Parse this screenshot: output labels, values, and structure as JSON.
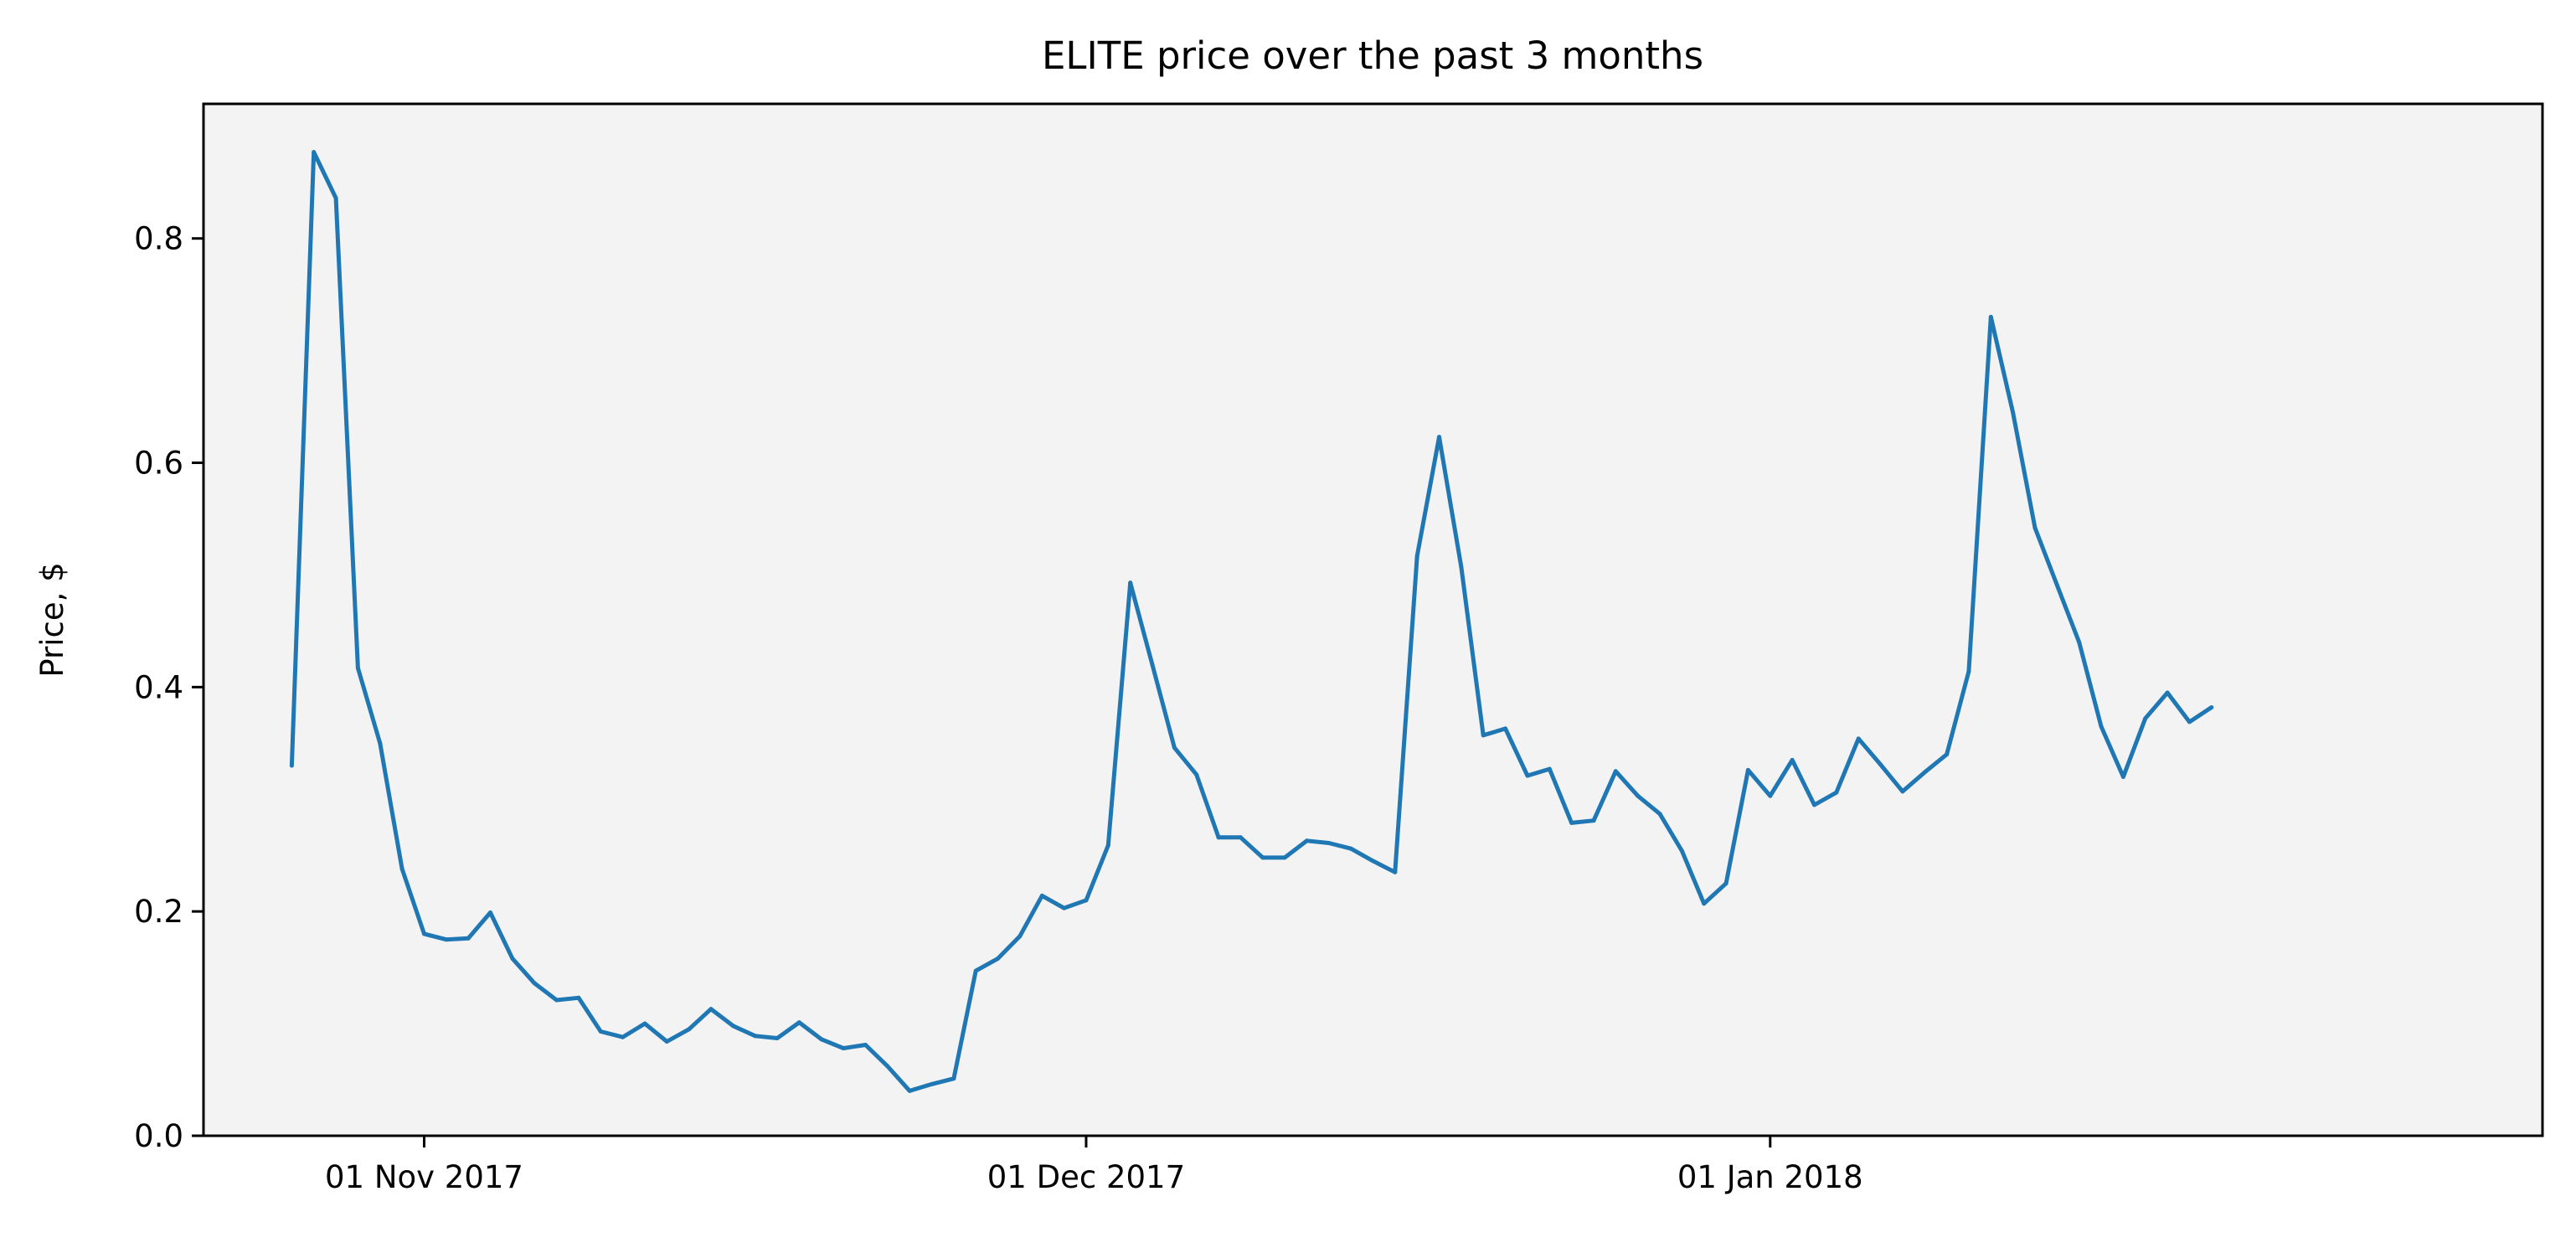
{
  "chart_data": {
    "type": "line",
    "title": "ELITE price over the past 3 months",
    "xlabel": "",
    "ylabel": "Price, $",
    "ylim": [
      0,
      0.92
    ],
    "xlim": [
      "2017-10-22",
      "2018-02-05"
    ],
    "grid": false,
    "plot_background": "#f3f3f3",
    "line_color": "#1f77b4",
    "x_ticks": [
      {
        "date": "2017-11-01",
        "label": "01 Nov 2017"
      },
      {
        "date": "2017-12-01",
        "label": "01 Dec 2017"
      },
      {
        "date": "2018-01-01",
        "label": "01 Jan 2018"
      }
    ],
    "y_ticks": [
      {
        "value": 0.0,
        "label": "0.0"
      },
      {
        "value": 0.2,
        "label": "0.2"
      },
      {
        "value": 0.4,
        "label": "0.4"
      },
      {
        "value": 0.6,
        "label": "0.6"
      },
      {
        "value": 0.8,
        "label": "0.8"
      }
    ],
    "series": [
      {
        "points": [
          [
            "2017-10-26",
            0.33
          ],
          [
            "2017-10-27",
            0.877
          ],
          [
            "2017-10-28",
            0.836
          ],
          [
            "2017-10-29",
            0.417
          ],
          [
            "2017-10-30",
            0.35
          ],
          [
            "2017-10-31",
            0.238
          ],
          [
            "2017-11-01",
            0.18
          ],
          [
            "2017-11-02",
            0.175
          ],
          [
            "2017-11-03",
            0.176
          ],
          [
            "2017-11-04",
            0.199
          ],
          [
            "2017-11-05",
            0.158
          ],
          [
            "2017-11-06",
            0.136
          ],
          [
            "2017-11-07",
            0.121
          ],
          [
            "2017-11-08",
            0.123
          ],
          [
            "2017-11-09",
            0.093
          ],
          [
            "2017-11-10",
            0.088
          ],
          [
            "2017-11-11",
            0.1
          ],
          [
            "2017-11-12",
            0.084
          ],
          [
            "2017-11-13",
            0.095
          ],
          [
            "2017-11-14",
            0.113
          ],
          [
            "2017-11-15",
            0.098
          ],
          [
            "2017-11-16",
            0.089
          ],
          [
            "2017-11-17",
            0.087
          ],
          [
            "2017-11-18",
            0.101
          ],
          [
            "2017-11-19",
            0.086
          ],
          [
            "2017-11-20",
            0.078
          ],
          [
            "2017-11-21",
            0.081
          ],
          [
            "2017-11-22",
            0.062
          ],
          [
            "2017-11-23",
            0.04
          ],
          [
            "2017-11-24",
            0.046
          ],
          [
            "2017-11-25",
            0.051
          ],
          [
            "2017-11-26",
            0.147
          ],
          [
            "2017-11-27",
            0.158
          ],
          [
            "2017-11-28",
            0.178
          ],
          [
            "2017-11-29",
            0.214
          ],
          [
            "2017-11-30",
            0.203
          ],
          [
            "2017-12-01",
            0.21
          ],
          [
            "2017-12-02",
            0.259
          ],
          [
            "2017-12-03",
            0.493
          ],
          [
            "2017-12-04",
            0.42
          ],
          [
            "2017-12-05",
            0.346
          ],
          [
            "2017-12-06",
            0.322
          ],
          [
            "2017-12-07",
            0.266
          ],
          [
            "2017-12-08",
            0.266
          ],
          [
            "2017-12-09",
            0.248
          ],
          [
            "2017-12-10",
            0.248
          ],
          [
            "2017-12-11",
            0.263
          ],
          [
            "2017-12-12",
            0.261
          ],
          [
            "2017-12-13",
            0.256
          ],
          [
            "2017-12-14",
            0.245
          ],
          [
            "2017-12-15",
            0.235
          ],
          [
            "2017-12-16",
            0.517
          ],
          [
            "2017-12-17",
            0.623
          ],
          [
            "2017-12-18",
            0.507
          ],
          [
            "2017-12-19",
            0.357
          ],
          [
            "2017-12-20",
            0.363
          ],
          [
            "2017-12-21",
            0.321
          ],
          [
            "2017-12-22",
            0.327
          ],
          [
            "2017-12-23",
            0.279
          ],
          [
            "2017-12-24",
            0.281
          ],
          [
            "2017-12-25",
            0.325
          ],
          [
            "2017-12-26",
            0.303
          ],
          [
            "2017-12-27",
            0.287
          ],
          [
            "2017-12-28",
            0.254
          ],
          [
            "2017-12-29",
            0.207
          ],
          [
            "2017-12-30",
            0.225
          ],
          [
            "2017-12-31",
            0.326
          ],
          [
            "2018-01-01",
            0.303
          ],
          [
            "2018-01-02",
            0.335
          ],
          [
            "2018-01-03",
            0.295
          ],
          [
            "2018-01-04",
            0.306
          ],
          [
            "2018-01-05",
            0.354
          ],
          [
            "2018-01-06",
            0.331
          ],
          [
            "2018-01-07",
            0.307
          ],
          [
            "2018-01-08",
            0.324
          ],
          [
            "2018-01-09",
            0.34
          ],
          [
            "2018-01-10",
            0.414
          ],
          [
            "2018-01-11",
            0.73
          ],
          [
            "2018-01-12",
            0.645
          ],
          [
            "2018-01-13",
            0.542
          ],
          [
            "2018-01-14",
            0.491
          ],
          [
            "2018-01-15",
            0.44
          ],
          [
            "2018-01-16",
            0.365
          ],
          [
            "2018-01-17",
            0.32
          ],
          [
            "2018-01-18",
            0.372
          ],
          [
            "2018-01-19",
            0.395
          ],
          [
            "2018-01-20",
            0.369
          ],
          [
            "2018-01-21",
            0.382
          ]
        ]
      }
    ]
  }
}
